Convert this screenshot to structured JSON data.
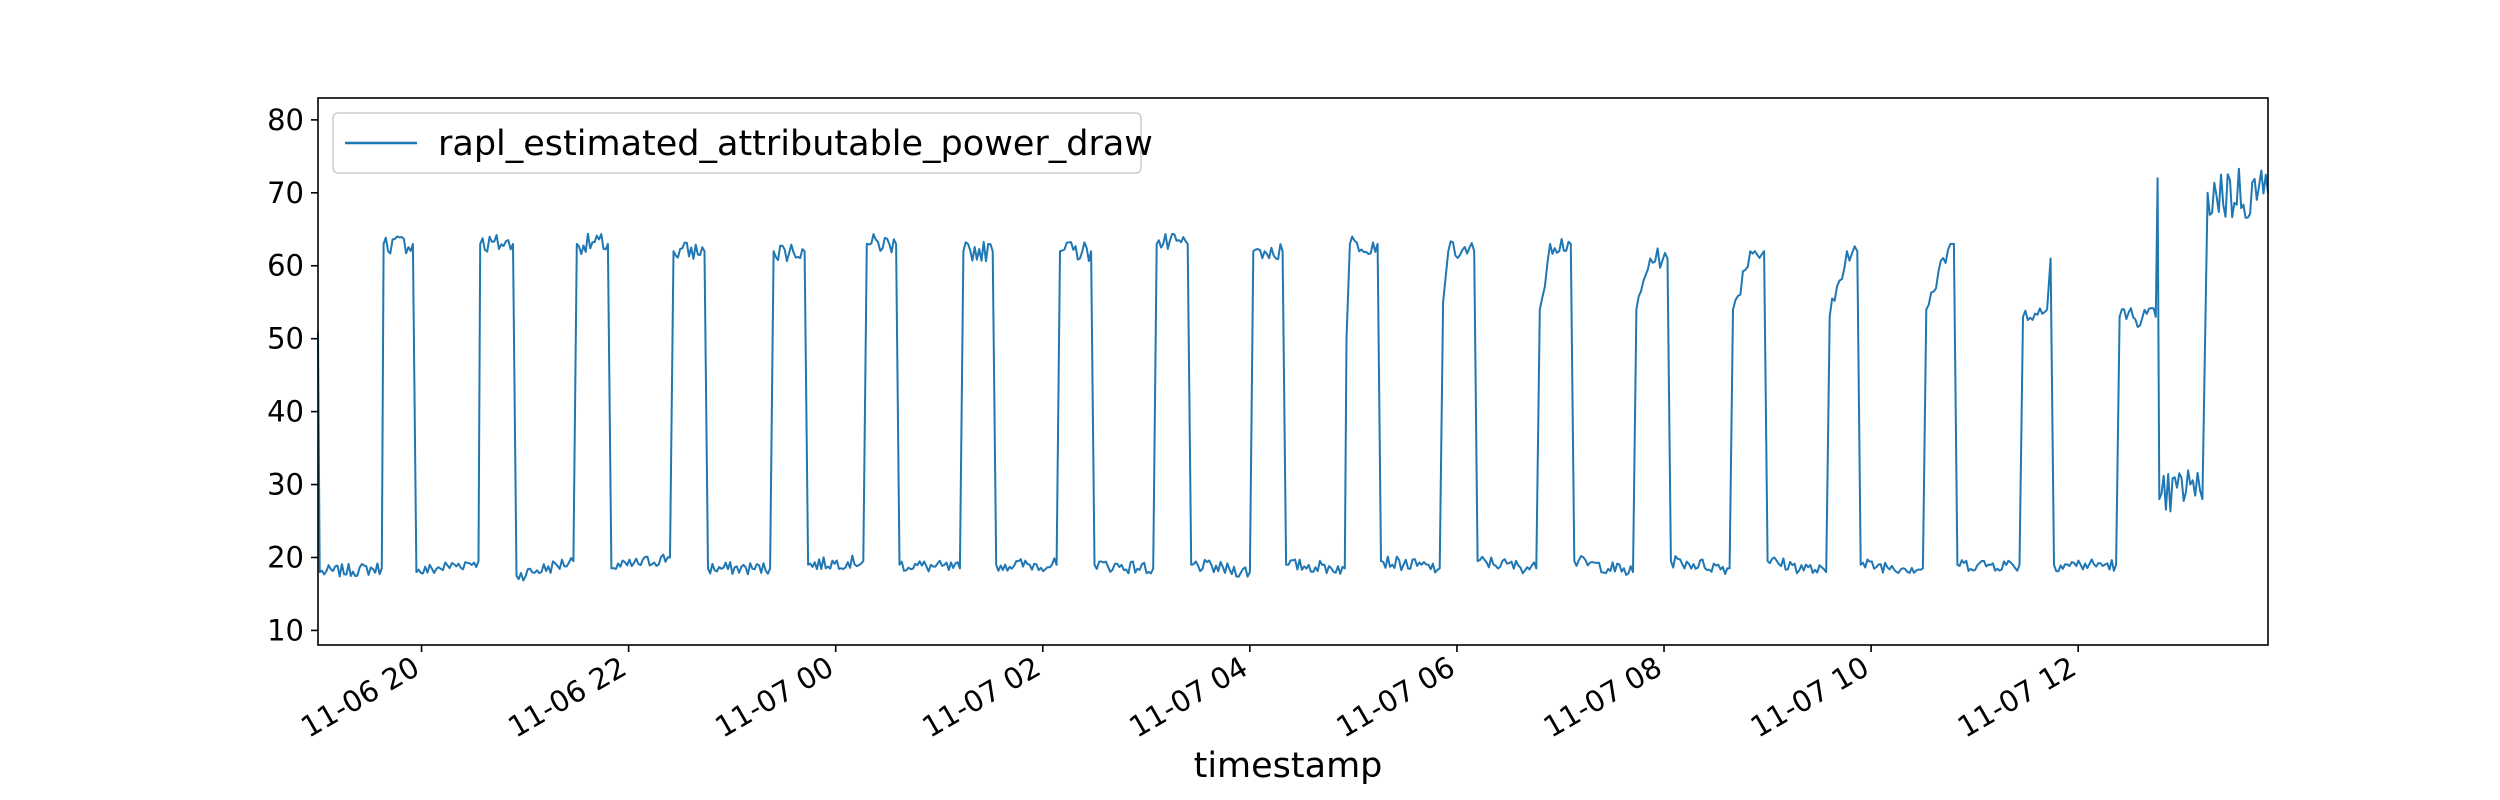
{
  "chart_data": {
    "type": "line",
    "title": "",
    "xlabel": "timestamp",
    "ylabel": "",
    "ylim": [
      8,
      83
    ],
    "xlim": [
      "11-06 19:00",
      "11-07 13:50"
    ],
    "grid": false,
    "legend_position": "top-left",
    "y_ticks": [
      10,
      20,
      30,
      40,
      50,
      60,
      70,
      80
    ],
    "x_ticks": [
      {
        "label": "11-06 20",
        "hour": 20
      },
      {
        "label": "11-06 22",
        "hour": 22
      },
      {
        "label": "11-07 00",
        "hour": 24
      },
      {
        "label": "11-07 02",
        "hour": 26
      },
      {
        "label": "11-07 04",
        "hour": 28
      },
      {
        "label": "11-07 06",
        "hour": 30
      },
      {
        "label": "11-07 08",
        "hour": 32
      },
      {
        "label": "11-07 10",
        "hour": 34
      },
      {
        "label": "11-07 12",
        "hour": 36
      }
    ],
    "series": [
      {
        "name": "rapl_estimated_attributable_power_draw",
        "color": "#1f77b4",
        "points": [
          [
            "11-06 19:00",
            51
          ],
          [
            "11-06 19:01",
            18
          ],
          [
            "11-06 19:37",
            18.5
          ],
          [
            "11-06 19:38",
            63
          ],
          [
            "11-06 19:55",
            63
          ],
          [
            "11-06 19:57",
            18
          ],
          [
            "11-06 20:33",
            19.5
          ],
          [
            "11-06 20:34",
            63
          ],
          [
            "11-06 20:53",
            63
          ],
          [
            "11-06 20:55",
            17.5
          ],
          [
            "11-06 21:28",
            19.5
          ],
          [
            "11-06 21:30",
            63
          ],
          [
            "11-06 21:48",
            63
          ],
          [
            "11-06 21:50",
            18.5
          ],
          [
            "11-06 22:24",
            20
          ],
          [
            "11-06 22:26",
            62
          ],
          [
            "11-06 22:44",
            62
          ],
          [
            "11-06 22:46",
            18.5
          ],
          [
            "11-06 23:22",
            18.5
          ],
          [
            "11-06 23:24",
            62
          ],
          [
            "11-06 23:42",
            62
          ],
          [
            "11-06 23:44",
            19
          ],
          [
            "11-07 00:16",
            19.5
          ],
          [
            "11-07 00:18",
            63
          ],
          [
            "11-07 00:35",
            63
          ],
          [
            "11-07 00:37",
            19
          ],
          [
            "11-07 01:12",
            18.5
          ],
          [
            "11-07 01:14",
            62
          ],
          [
            "11-07 01:31",
            62
          ],
          [
            "11-07 01:33",
            19
          ],
          [
            "11-07 02:08",
            19
          ],
          [
            "11-07 02:10",
            62
          ],
          [
            "11-07 02:28",
            62
          ],
          [
            "11-07 02:30",
            19
          ],
          [
            "11-07 03:04",
            18.5
          ],
          [
            "11-07 03:06",
            63
          ],
          [
            "11-07 03:24",
            63
          ],
          [
            "11-07 03:26",
            19
          ],
          [
            "11-07 04:00",
            18
          ],
          [
            "11-07 04:02",
            62
          ],
          [
            "11-07 04:19",
            62
          ],
          [
            "11-07 04:21",
            19
          ],
          [
            "11-07 04:55",
            18.5
          ],
          [
            "11-07 04:56",
            50
          ],
          [
            "11-07 04:58",
            63
          ],
          [
            "11-07 05:14",
            63
          ],
          [
            "11-07 05:16",
            19.5
          ],
          [
            "11-07 05:50",
            18.5
          ],
          [
            "11-07 05:52",
            55
          ],
          [
            "11-07 05:55",
            62
          ],
          [
            "11-07 06:10",
            62
          ],
          [
            "11-07 06:12",
            19.5
          ],
          [
            "11-07 06:46",
            18.5
          ],
          [
            "11-07 06:48",
            54
          ],
          [
            "11-07 06:54",
            63
          ],
          [
            "11-07 07:06",
            63
          ],
          [
            "11-07 07:08",
            19.5
          ],
          [
            "11-07 07:42",
            18
          ],
          [
            "11-07 07:44",
            54
          ],
          [
            "11-07 07:52",
            61
          ],
          [
            "11-07 08:02",
            61
          ],
          [
            "11-07 08:04",
            19.5
          ],
          [
            "11-07 08:38",
            18.5
          ],
          [
            "11-07 08:40",
            54
          ],
          [
            "11-07 08:50",
            62
          ],
          [
            "11-07 08:58",
            62
          ],
          [
            "11-07 09:00",
            19.5
          ],
          [
            "11-07 09:34",
            18
          ],
          [
            "11-07 09:36",
            53
          ],
          [
            "11-07 09:46",
            62
          ],
          [
            "11-07 09:52",
            62
          ],
          [
            "11-07 09:54",
            19
          ],
          [
            "11-07 10:30",
            18.5
          ],
          [
            "11-07 10:32",
            54
          ],
          [
            "11-07 10:46",
            63
          ],
          [
            "11-07 10:48",
            63
          ],
          [
            "11-07 10:50",
            19
          ],
          [
            "11-07 11:26",
            19
          ],
          [
            "11-07 11:28",
            53
          ],
          [
            "11-07 11:42",
            54
          ],
          [
            "11-07 11:44",
            61
          ],
          [
            "11-07 11:46",
            19
          ],
          [
            "11-07 12:22",
            19
          ],
          [
            "11-07 12:24",
            53
          ],
          [
            "11-07 12:45",
            53
          ],
          [
            "11-07 12:46",
            72
          ],
          [
            "11-07 12:47",
            28
          ],
          [
            "11-07 13:05",
            30
          ],
          [
            "11-07 13:12",
            28
          ],
          [
            "11-07 13:15",
            70
          ],
          [
            "11-07 13:50",
            70
          ]
        ]
      }
    ]
  }
}
